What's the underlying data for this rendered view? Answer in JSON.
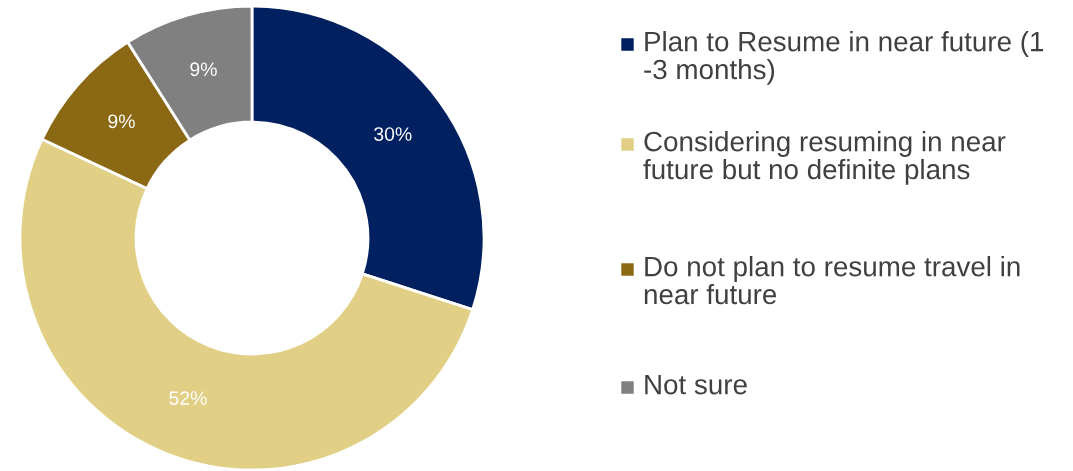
{
  "chart_data": {
    "type": "donut",
    "categories": [
      "Plan to Resume in near future (1 -3 months)",
      "Considering resuming in near future but no definite plans",
      "Do not plan to resume travel in near future",
      "Not sure"
    ],
    "values": [
      30,
      52,
      9,
      9
    ],
    "colors": [
      "#002060",
      "#e0cf85",
      "#8b6914",
      "#808080"
    ],
    "value_labels": [
      "30%",
      "52%",
      "9%",
      "9%"
    ],
    "legend": "right"
  }
}
